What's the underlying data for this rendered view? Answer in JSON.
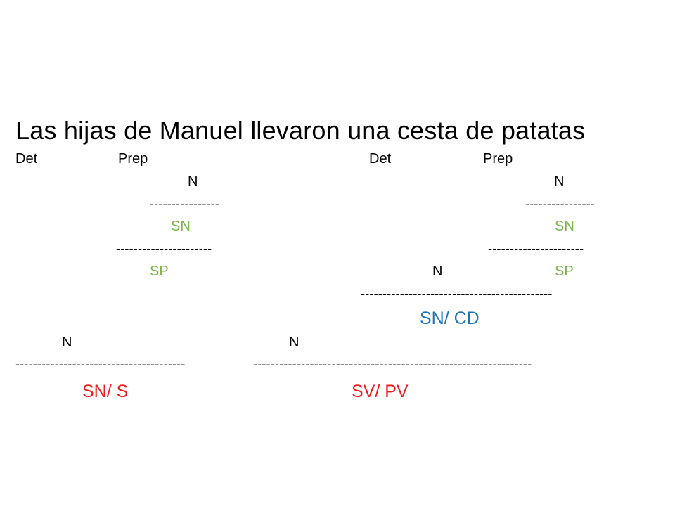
{
  "sentence": "Las hijas de Manuel llevaron una cesta de patatas",
  "analysis": {
    "subject": {
      "det": "Det",
      "prep": "Prep",
      "inner_n": "N",
      "inner_sn_rule": "----------------",
      "inner_sn": "SN",
      "sp_rule": "----------------------",
      "sp": "SP",
      "head_n": "N",
      "rule": "---------------------------------------",
      "label": "SN/ S"
    },
    "predicate": {
      "det": "Det",
      "prep": "Prep",
      "inner_n": "N",
      "inner_sn_rule": "----------------",
      "inner_sn": "SN",
      "sp_rule": "----------------------",
      "cd_n": "N",
      "sp": "SP",
      "cd_rule": "--------------------------------------------",
      "cd_label": "SN/ CD",
      "head_n": "N",
      "rule": "----------------------------------------------------------------",
      "label": "SV/ PV"
    }
  },
  "colors": {
    "phrase_green": "#7ab648",
    "function_blue": "#1f73b7",
    "function_red": "#ee1c1c"
  }
}
